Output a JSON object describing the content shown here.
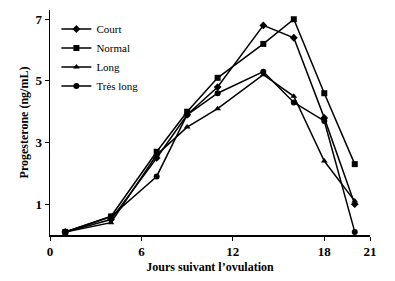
{
  "chart_data": {
    "type": "line",
    "x_label": "Jours suivant l’ovulation",
    "y_label": "Progesterone (ng/mL)",
    "x": [
      1,
      4,
      7,
      9,
      11,
      14,
      16,
      18,
      20
    ],
    "series": [
      {
        "name": "Court",
        "color": "#000000",
        "marker": "diamond",
        "line_style": "solid",
        "values": [
          0.1,
          0.5,
          2.5,
          3.9,
          4.8,
          6.8,
          6.4,
          3.8,
          1.0
        ]
      },
      {
        "name": "Normal",
        "color": "#000000",
        "marker": "square",
        "line_style": "solid",
        "values": [
          0.1,
          0.6,
          2.7,
          4.0,
          5.1,
          6.2,
          7.0,
          4.6,
          2.3
        ]
      },
      {
        "name": "Long",
        "color": "#000000",
        "marker": "triangle-up",
        "line_style": "solid",
        "values": [
          0.1,
          0.4,
          2.6,
          3.5,
          4.1,
          5.2,
          4.5,
          2.4,
          1.1
        ]
      },
      {
        "name": "Très long",
        "color": "#000000",
        "marker": "circle",
        "line_style": "solid",
        "values": [
          0.1,
          0.6,
          1.9,
          3.9,
          4.6,
          5.3,
          4.3,
          3.7,
          0.1
        ]
      }
    ],
    "xlim": [
      0,
      21
    ],
    "xticks": [
      0,
      6,
      12,
      18,
      21
    ],
    "ylim": [
      0,
      7.3
    ],
    "yticks": [
      1,
      3,
      5,
      7
    ],
    "grid": false,
    "legend": "top left"
  }
}
